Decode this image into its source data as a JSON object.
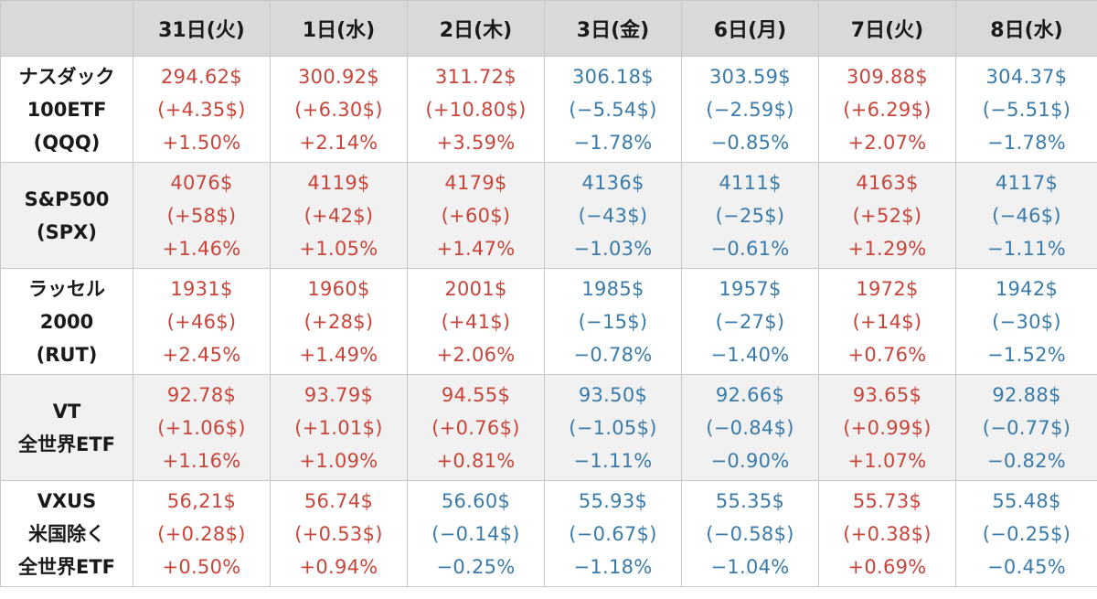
{
  "colors": {
    "up": "#c8453a",
    "down": "#3a7bab",
    "header_bg": "#d9d9d9"
  },
  "headers": [
    "",
    "31日(火)",
    "1日(水)",
    "2日(木)",
    "3日(金)",
    "6日(月)",
    "7日(火)",
    "8日(水)"
  ],
  "rows": [
    {
      "label": [
        "ナスダック",
        "100ETF",
        "(QQQ)"
      ],
      "cells": [
        {
          "price": "294.62$",
          "change": "(+4.35$)",
          "pct": "+1.50%",
          "dir": "up"
        },
        {
          "price": "300.92$",
          "change": "(+6.30$)",
          "pct": "+2.14%",
          "dir": "up"
        },
        {
          "price": "311.72$",
          "change": "(+10.80$)",
          "pct": "+3.59%",
          "dir": "up"
        },
        {
          "price": "306.18$",
          "change": "(−5.54$)",
          "pct": "−1.78%",
          "dir": "down"
        },
        {
          "price": "303.59$",
          "change": "(−2.59$)",
          "pct": "−0.85%",
          "dir": "down"
        },
        {
          "price": "309.88$",
          "change": "(+6.29$)",
          "pct": "+2.07%",
          "dir": "up"
        },
        {
          "price": "304.37$",
          "change": "(−5.51$)",
          "pct": "−1.78%",
          "dir": "down"
        }
      ]
    },
    {
      "label": [
        "S&P500",
        "(SPX)"
      ],
      "cells": [
        {
          "price": "4076$",
          "change": "(+58$)",
          "pct": "+1.46%",
          "dir": "up"
        },
        {
          "price": "4119$",
          "change": "(+42$)",
          "pct": "+1.05%",
          "dir": "up"
        },
        {
          "price": "4179$",
          "change": "(+60$)",
          "pct": "+1.47%",
          "dir": "up"
        },
        {
          "price": "4136$",
          "change": "(−43$)",
          "pct": "−1.03%",
          "dir": "down"
        },
        {
          "price": "4111$",
          "change": "(−25$)",
          "pct": "−0.61%",
          "dir": "down"
        },
        {
          "price": "4163$",
          "change": "(+52$)",
          "pct": "+1.29%",
          "dir": "up"
        },
        {
          "price": "4117$",
          "change": "(−46$)",
          "pct": "−1.11%",
          "dir": "down"
        }
      ]
    },
    {
      "label": [
        "ラッセル",
        "2000",
        "(RUT)"
      ],
      "cells": [
        {
          "price": "1931$",
          "change": "(+46$)",
          "pct": "+2.45%",
          "dir": "up"
        },
        {
          "price": "1960$",
          "change": "(+28$)",
          "pct": "+1.49%",
          "dir": "up"
        },
        {
          "price": "2001$",
          "change": "(+41$)",
          "pct": "+2.06%",
          "dir": "up"
        },
        {
          "price": "1985$",
          "change": "(−15$)",
          "pct": "−0.78%",
          "dir": "down"
        },
        {
          "price": "1957$",
          "change": "(−27$)",
          "pct": "−1.40%",
          "dir": "down"
        },
        {
          "price": "1972$",
          "change": "(+14$)",
          "pct": "+0.76%",
          "dir": "up"
        },
        {
          "price": "1942$",
          "change": "(−30$)",
          "pct": "−1.52%",
          "dir": "down"
        }
      ]
    },
    {
      "label": [
        "VT",
        "全世界ETF"
      ],
      "cells": [
        {
          "price": "92.78$",
          "change": "(+1.06$)",
          "pct": "+1.16%",
          "dir": "up"
        },
        {
          "price": "93.79$",
          "change": "(+1.01$)",
          "pct": "+1.09%",
          "dir": "up"
        },
        {
          "price": "94.55$",
          "change": "(+0.76$)",
          "pct": "+0.81%",
          "dir": "up"
        },
        {
          "price": "93.50$",
          "change": "(−1.05$)",
          "pct": "−1.11%",
          "dir": "down"
        },
        {
          "price": "92.66$",
          "change": "(−0.84$)",
          "pct": "−0.90%",
          "dir": "down"
        },
        {
          "price": "93.65$",
          "change": "(+0.99$)",
          "pct": "+1.07%",
          "dir": "up"
        },
        {
          "price": "92.88$",
          "change": "(−0.77$)",
          "pct": "−0.82%",
          "dir": "down"
        }
      ]
    },
    {
      "label": [
        "VXUS",
        "米国除く",
        "全世界ETF"
      ],
      "cells": [
        {
          "price": "56,21$",
          "change": "(+0.28$)",
          "pct": "+0.50%",
          "dir": "up"
        },
        {
          "price": "56.74$",
          "change": "(+0.53$)",
          "pct": "+0.94%",
          "dir": "up"
        },
        {
          "price": "56.60$",
          "change": "(−0.14$)",
          "pct": "−0.25%",
          "dir": "down"
        },
        {
          "price": "55.93$",
          "change": "(−0.67$)",
          "pct": "−1.18%",
          "dir": "down"
        },
        {
          "price": "55.35$",
          "change": "(−0.58$)",
          "pct": "−1.04%",
          "dir": "down"
        },
        {
          "price": "55.73$",
          "change": "(+0.38$)",
          "pct": "+0.69%",
          "dir": "up"
        },
        {
          "price": "55.48$",
          "change": "(−0.25$)",
          "pct": "−0.45%",
          "dir": "down"
        }
      ]
    }
  ]
}
